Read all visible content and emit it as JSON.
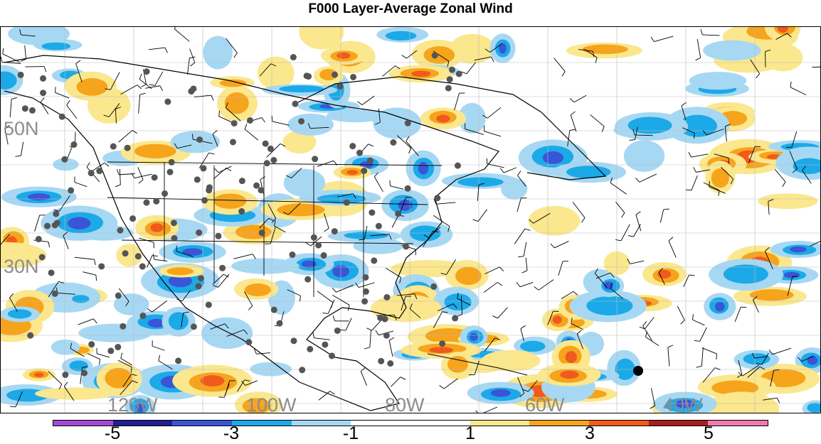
{
  "title": "F000 Layer-Average Zonal Wind",
  "lat_labels": [
    "50N",
    "30N"
  ],
  "lon_labels": [
    "120W",
    "100W",
    "80W",
    "60W",
    "40W"
  ],
  "colorbar": {
    "colors": [
      "#a24bd4",
      "#1f1f8f",
      "#3a55d6",
      "#1ca9e8",
      "#a7d8f3",
      "#ffffff",
      "#ffffff",
      "#fbe78d",
      "#f6a41c",
      "#f05a1c",
      "#a81d1d",
      "#f07ab0"
    ],
    "labels": [
      "-5",
      "-3",
      "-1",
      "1",
      "3",
      "5"
    ]
  },
  "palette": {
    "strong_neg": "#3a55d6",
    "mid_neg": "#1ca9e8",
    "weak_neg": "#a7d8f3",
    "weak_pos": "#fbe78d",
    "mid_pos": "#f6a41c",
    "strong_pos": "#f05a1c",
    "station": "#555555",
    "grid": "#bbbbbb"
  },
  "map": {
    "type": "contour-fill",
    "field": "zonal wind anomaly",
    "features": [
      "coastlines",
      "state-boundaries",
      "station-dots",
      "wind-barbs",
      "lat-lon-grid"
    ]
  }
}
